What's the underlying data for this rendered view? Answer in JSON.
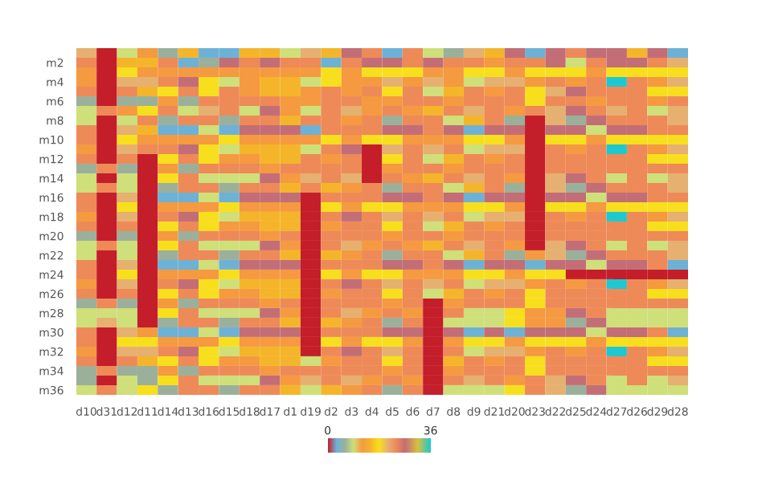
{
  "chart_data": {
    "type": "heatmap",
    "categories": [
      "d10",
      "d31",
      "d12",
      "d11",
      "d14",
      "d13",
      "d16",
      "d15",
      "d18",
      "d17",
      "d1",
      "d19",
      "d2",
      "d3",
      "d4",
      "d5",
      "d6",
      "d7",
      "d8",
      "d9",
      "d21",
      "d20",
      "d23",
      "d22",
      "d25",
      "d24",
      "d27",
      "d26",
      "d29",
      "d28"
    ],
    "y_categories": [
      null,
      "m2",
      null,
      "m4",
      null,
      "m6",
      null,
      "m8",
      null,
      "m10",
      null,
      "m12",
      null,
      "m14",
      null,
      "m16",
      null,
      "m18",
      null,
      "m20",
      null,
      "m22",
      null,
      "m24",
      null,
      "m26",
      null,
      "m28",
      null,
      "m30",
      null,
      "m32",
      null,
      "m34",
      null,
      "m36"
    ],
    "cells": [
      [
        21,
        0,
        9,
        12,
        6,
        15,
        3,
        3,
        15,
        15,
        9,
        21,
        15,
        27,
        24,
        3,
        24,
        9,
        6,
        21,
        15,
        27,
        3,
        27,
        24,
        27,
        27,
        15,
        27,
        3
      ],
      [
        24,
        0,
        15,
        15,
        24,
        3,
        6,
        27,
        24,
        27,
        24,
        24,
        3,
        24,
        27,
        27,
        24,
        27,
        24,
        24,
        12,
        24,
        24,
        27,
        9,
        24,
        27,
        27,
        24,
        21
      ],
      [
        12,
        0,
        18,
        12,
        12,
        12,
        12,
        12,
        12,
        12,
        12,
        12,
        18,
        12,
        18,
        18,
        18,
        12,
        12,
        18,
        18,
        12,
        18,
        18,
        18,
        12,
        18,
        18,
        18,
        18
      ],
      [
        12,
        0,
        21,
        21,
        24,
        27,
        18,
        9,
        12,
        15,
        15,
        9,
        18,
        12,
        12,
        21,
        12,
        21,
        12,
        9,
        21,
        21,
        12,
        24,
        12,
        24,
        36,
        24,
        12,
        21
      ],
      [
        24,
        0,
        24,
        15,
        18,
        24,
        18,
        24,
        12,
        15,
        15,
        12,
        24,
        12,
        24,
        18,
        24,
        9,
        15,
        24,
        12,
        24,
        18,
        21,
        27,
        24,
        24,
        24,
        18,
        18
      ],
      [
        6,
        0,
        6,
        6,
        12,
        6,
        24,
        24,
        24,
        24,
        12,
        12,
        24,
        24,
        12,
        12,
        24,
        24,
        12,
        24,
        24,
        24,
        18,
        24,
        24,
        12,
        24,
        24,
        12,
        24
      ],
      [
        9,
        24,
        12,
        18,
        24,
        9,
        21,
        24,
        9,
        27,
        12,
        9,
        24,
        21,
        12,
        24,
        12,
        15,
        24,
        21,
        24,
        12,
        24,
        21,
        27,
        24,
        21,
        24,
        9,
        21
      ],
      [
        9,
        0,
        9,
        24,
        6,
        24,
        24,
        6,
        24,
        24,
        15,
        24,
        24,
        12,
        24,
        6,
        24,
        24,
        9,
        15,
        24,
        6,
        0,
        21,
        6,
        27,
        24,
        24,
        24,
        21
      ],
      [
        24,
        0,
        21,
        15,
        3,
        3,
        9,
        3,
        27,
        27,
        27,
        3,
        24,
        24,
        24,
        27,
        27,
        24,
        27,
        3,
        27,
        27,
        0,
        27,
        27,
        9,
        27,
        27,
        24,
        24
      ],
      [
        24,
        0,
        18,
        12,
        12,
        12,
        12,
        18,
        12,
        12,
        12,
        12,
        18,
        12,
        18,
        18,
        12,
        12,
        12,
        18,
        18,
        12,
        0,
        18,
        18,
        12,
        18,
        18,
        18,
        18
      ],
      [
        12,
        0,
        21,
        24,
        24,
        27,
        18,
        9,
        15,
        15,
        15,
        9,
        24,
        27,
        0,
        21,
        24,
        21,
        24,
        9,
        21,
        21,
        0,
        24,
        12,
        24,
        36,
        24,
        12,
        21
      ],
      [
        24,
        0,
        24,
        0,
        18,
        24,
        18,
        12,
        12,
        15,
        15,
        24,
        12,
        24,
        0,
        18,
        24,
        9,
        15,
        24,
        12,
        24,
        0,
        24,
        24,
        24,
        24,
        24,
        18,
        18
      ],
      [
        6,
        24,
        6,
        0,
        12,
        6,
        24,
        24,
        24,
        12,
        24,
        24,
        24,
        24,
        0,
        12,
        24,
        24,
        12,
        24,
        24,
        24,
        0,
        24,
        24,
        24,
        24,
        24,
        24,
        24
      ],
      [
        9,
        0,
        9,
        0,
        18,
        24,
        9,
        9,
        9,
        27,
        12,
        21,
        24,
        21,
        0,
        24,
        12,
        15,
        24,
        21,
        24,
        12,
        0,
        21,
        27,
        24,
        9,
        24,
        9,
        21
      ],
      [
        9,
        24,
        9,
        0,
        6,
        24,
        24,
        6,
        24,
        24,
        15,
        24,
        15,
        12,
        24,
        6,
        24,
        24,
        9,
        15,
        24,
        6,
        0,
        21,
        6,
        27,
        24,
        24,
        24,
        21
      ],
      [
        24,
        0,
        21,
        0,
        3,
        3,
        9,
        3,
        27,
        27,
        27,
        0,
        24,
        24,
        24,
        27,
        27,
        24,
        27,
        3,
        27,
        27,
        0,
        27,
        27,
        9,
        27,
        27,
        24,
        24
      ],
      [
        24,
        0,
        18,
        0,
        12,
        12,
        12,
        18,
        12,
        12,
        12,
        0,
        18,
        12,
        18,
        18,
        12,
        12,
        12,
        18,
        18,
        12,
        0,
        18,
        18,
        12,
        18,
        18,
        18,
        18
      ],
      [
        12,
        0,
        21,
        0,
        24,
        27,
        18,
        9,
        15,
        15,
        15,
        0,
        24,
        27,
        24,
        21,
        24,
        21,
        24,
        9,
        21,
        21,
        0,
        24,
        12,
        24,
        36,
        24,
        12,
        21
      ],
      [
        24,
        0,
        24,
        0,
        18,
        24,
        18,
        12,
        12,
        15,
        15,
        0,
        12,
        24,
        24,
        18,
        24,
        9,
        15,
        24,
        12,
        24,
        0,
        24,
        24,
        24,
        24,
        24,
        18,
        18
      ],
      [
        6,
        0,
        6,
        0,
        12,
        6,
        24,
        24,
        24,
        12,
        24,
        0,
        24,
        24,
        24,
        12,
        24,
        24,
        12,
        24,
        24,
        24,
        0,
        24,
        24,
        24,
        24,
        24,
        24,
        24
      ],
      [
        9,
        24,
        9,
        0,
        18,
        24,
        9,
        9,
        9,
        27,
        12,
        0,
        24,
        21,
        12,
        24,
        12,
        15,
        24,
        21,
        24,
        12,
        0,
        21,
        27,
        24,
        9,
        24,
        9,
        21
      ],
      [
        9,
        0,
        9,
        0,
        6,
        24,
        24,
        6,
        24,
        24,
        15,
        0,
        15,
        12,
        24,
        6,
        24,
        24,
        9,
        15,
        24,
        6,
        12,
        21,
        6,
        27,
        24,
        24,
        24,
        21
      ],
      [
        24,
        0,
        21,
        0,
        3,
        3,
        9,
        3,
        27,
        27,
        27,
        0,
        24,
        24,
        24,
        27,
        27,
        24,
        27,
        3,
        27,
        27,
        3,
        27,
        27,
        9,
        27,
        27,
        24,
        3
      ],
      [
        24,
        0,
        18,
        0,
        12,
        12,
        12,
        18,
        12,
        12,
        12,
        0,
        18,
        12,
        18,
        18,
        12,
        12,
        12,
        18,
        18,
        12,
        18,
        18,
        0,
        0,
        0,
        0,
        0,
        0
      ],
      [
        12,
        0,
        21,
        0,
        24,
        27,
        18,
        9,
        15,
        15,
        15,
        0,
        24,
        27,
        24,
        21,
        24,
        21,
        24,
        9,
        21,
        21,
        12,
        24,
        12,
        24,
        36,
        24,
        12,
        21
      ],
      [
        24,
        0,
        24,
        0,
        18,
        24,
        18,
        12,
        12,
        15,
        15,
        0,
        12,
        24,
        24,
        18,
        24,
        9,
        15,
        24,
        12,
        24,
        18,
        24,
        24,
        24,
        24,
        24,
        18,
        18
      ],
      [
        6,
        24,
        6,
        0,
        12,
        6,
        24,
        24,
        24,
        12,
        24,
        0,
        24,
        24,
        24,
        12,
        24,
        0,
        12,
        24,
        24,
        24,
        18,
        24,
        24,
        24,
        24,
        24,
        24,
        24
      ],
      [
        9,
        9,
        9,
        0,
        18,
        24,
        9,
        9,
        9,
        27,
        12,
        0,
        24,
        21,
        12,
        24,
        12,
        0,
        24,
        9,
        9,
        18,
        12,
        12,
        27,
        24,
        9,
        9,
        9,
        9
      ],
      [
        9,
        21,
        9,
        0,
        6,
        24,
        24,
        6,
        24,
        24,
        15,
        0,
        15,
        12,
        24,
        6,
        24,
        0,
        9,
        9,
        9,
        18,
        12,
        12,
        6,
        27,
        9,
        9,
        9,
        9
      ],
      [
        24,
        0,
        21,
        12,
        3,
        3,
        9,
        3,
        27,
        27,
        27,
        0,
        24,
        24,
        24,
        27,
        27,
        0,
        27,
        3,
        27,
        3,
        27,
        27,
        27,
        9,
        27,
        27,
        24,
        3
      ],
      [
        24,
        0,
        18,
        18,
        12,
        12,
        12,
        18,
        12,
        12,
        12,
        0,
        18,
        12,
        18,
        18,
        12,
        0,
        12,
        18,
        18,
        12,
        18,
        18,
        18,
        12,
        18,
        18,
        18,
        18
      ],
      [
        12,
        0,
        21,
        21,
        24,
        27,
        18,
        9,
        15,
        15,
        15,
        0,
        24,
        27,
        24,
        21,
        24,
        0,
        24,
        9,
        21,
        21,
        12,
        24,
        12,
        24,
        36,
        24,
        12,
        21
      ],
      [
        24,
        0,
        24,
        15,
        18,
        24,
        18,
        12,
        12,
        15,
        15,
        9,
        12,
        24,
        24,
        18,
        24,
        0,
        15,
        24,
        12,
        24,
        18,
        24,
        24,
        24,
        24,
        24,
        18,
        18
      ],
      [
        6,
        24,
        6,
        6,
        12,
        6,
        24,
        24,
        24,
        12,
        24,
        24,
        24,
        24,
        24,
        12,
        24,
        0,
        12,
        24,
        24,
        24,
        18,
        24,
        24,
        24,
        24,
        24,
        24,
        24
      ],
      [
        6,
        0,
        9,
        6,
        18,
        24,
        9,
        9,
        9,
        27,
        12,
        21,
        24,
        21,
        12,
        24,
        12,
        0,
        24,
        21,
        24,
        12,
        24,
        21,
        27,
        24,
        9,
        24,
        9,
        21
      ],
      [
        9,
        24,
        9,
        18,
        6,
        24,
        24,
        6,
        24,
        24,
        15,
        9,
        15,
        12,
        24,
        6,
        24,
        0,
        9,
        9,
        9,
        18,
        24,
        21,
        6,
        27,
        9,
        9,
        9,
        9
      ]
    ],
    "clim": [
      0,
      36
    ],
    "cticks": [
      0,
      36
    ]
  }
}
